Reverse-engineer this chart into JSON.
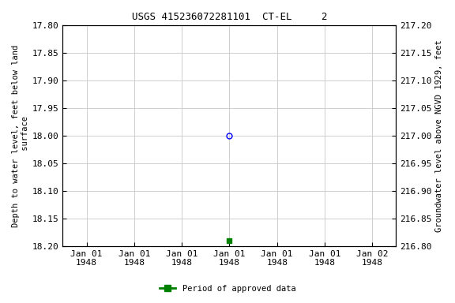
{
  "title": "USGS 415236072281101  CT-EL     2",
  "ylabel_left": "Depth to water level, feet below land\n surface",
  "ylabel_right": "Groundwater level above NGVD 1929, feet",
  "ylim_left_top": 17.8,
  "ylim_left_bottom": 18.2,
  "ylim_right_top": 217.2,
  "ylim_right_bottom": 216.8,
  "y_left_ticks": [
    17.8,
    17.85,
    17.9,
    17.95,
    18.0,
    18.05,
    18.1,
    18.15,
    18.2
  ],
  "y_right_ticks": [
    217.2,
    217.15,
    217.1,
    217.05,
    217.0,
    216.95,
    216.9,
    216.85,
    216.8
  ],
  "x_tick_labels": [
    "Jan 01\n1948",
    "Jan 01\n1948",
    "Jan 01\n1948",
    "Jan 01\n1948",
    "Jan 01\n1948",
    "Jan 01\n1948",
    "Jan 02\n1948"
  ],
  "x_tick_positions": [
    0,
    1,
    2,
    3,
    4,
    5,
    6
  ],
  "point_blue_x": 3.0,
  "point_blue_y": 18.0,
  "point_green_x": 3.0,
  "point_green_y": 18.19,
  "legend_label": "Period of approved data",
  "legend_color": "#008000",
  "bg_color": "#ffffff",
  "grid_color": "#c8c8c8",
  "title_fontsize": 9,
  "label_fontsize": 7.5,
  "tick_fontsize": 8
}
